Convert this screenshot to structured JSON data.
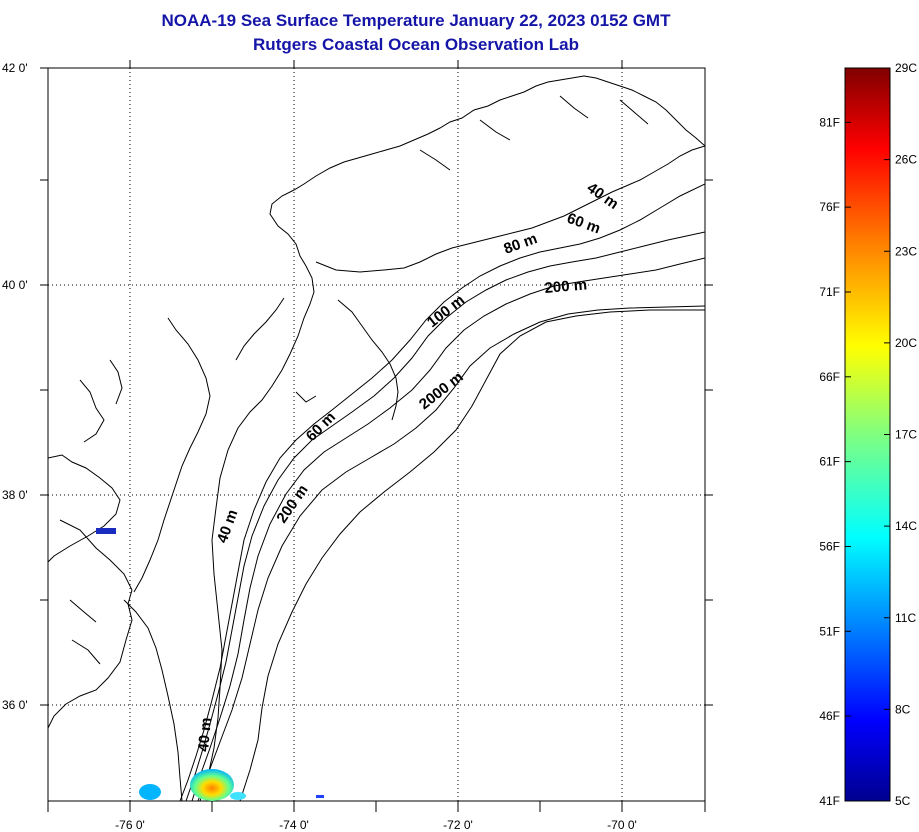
{
  "title": {
    "line1": "NOAA-19 Sea Surface Temperature January 22, 2023 0152 GMT",
    "line2": "Rutgers Coastal Ocean Observation Lab"
  },
  "axes": {
    "lat_ticks": [
      "42 0'",
      "40 0'",
      "38 0'",
      "36 0'"
    ],
    "lon_ticks": [
      "-76 0'",
      "-74 0'",
      "-72 0'",
      "-70 0'"
    ]
  },
  "depth_labels": [
    "40 m",
    "60 m",
    "80 m",
    "200 m",
    "100 m",
    "2000 m",
    "60 m",
    "200 m",
    "40 m",
    "40 m"
  ],
  "colorbar": {
    "celsius": [
      "29C",
      "26C",
      "23C",
      "20C",
      "17C",
      "14C",
      "11C",
      "8C",
      "5C"
    ],
    "fahrenheit": [
      "81F",
      "76F",
      "71F",
      "66F",
      "61F",
      "56F",
      "51F",
      "46F",
      "41F"
    ],
    "colors": [
      "#00008f",
      "#0000ff",
      "#0080ff",
      "#00ffff",
      "#80ff80",
      "#ffff00",
      "#ff8000",
      "#ff0000",
      "#800000"
    ]
  },
  "colors": {
    "title": "#1515a8",
    "coast": "#000000",
    "grid": "#000000"
  }
}
